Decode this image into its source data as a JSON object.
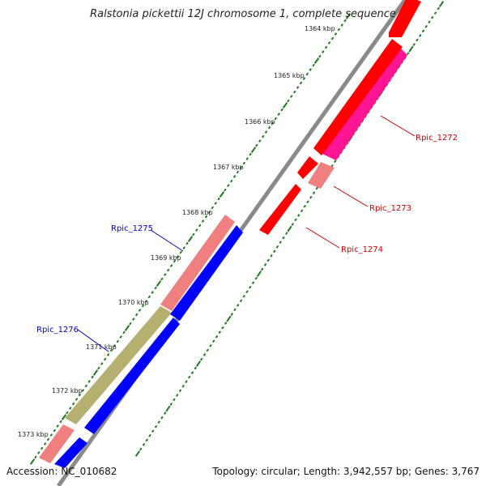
{
  "title": "Ralstonia pickettii 12J chromosome 1, complete sequence",
  "footer": {
    "accession": "Accession: NC_010682",
    "stats": "Topology: circular; Length: 3,942,557 bp; Genes: 3,767"
  },
  "colors": {
    "backbone": "#8a8a8a",
    "ticks": "#1f7a1f",
    "forward_gene": "#ff0000",
    "forward_gene_light": "#f08080",
    "forward_gene_pink": "#ff1493",
    "reverse_gene": "#0000ff",
    "olive_gene": "#b5b070",
    "label_forward": "#cc0000",
    "label_reverse": "#0000cc"
  },
  "ticks": [
    "1364 kbp",
    "1365 kbp",
    "1366 kbp",
    "1367 kbp",
    "1368 kbp",
    "1369 kbp",
    "1370 kbp",
    "1371 kbp",
    "1372 kbp",
    "1373 kbp"
  ],
  "gene_labels": {
    "rpic_1272": "Rpic_1272",
    "rpic_1273": "Rpic_1273",
    "rpic_1274": "Rpic_1274",
    "rpic_1275": "Rpic_1275",
    "rpic_1276": "Rpic_1276"
  }
}
